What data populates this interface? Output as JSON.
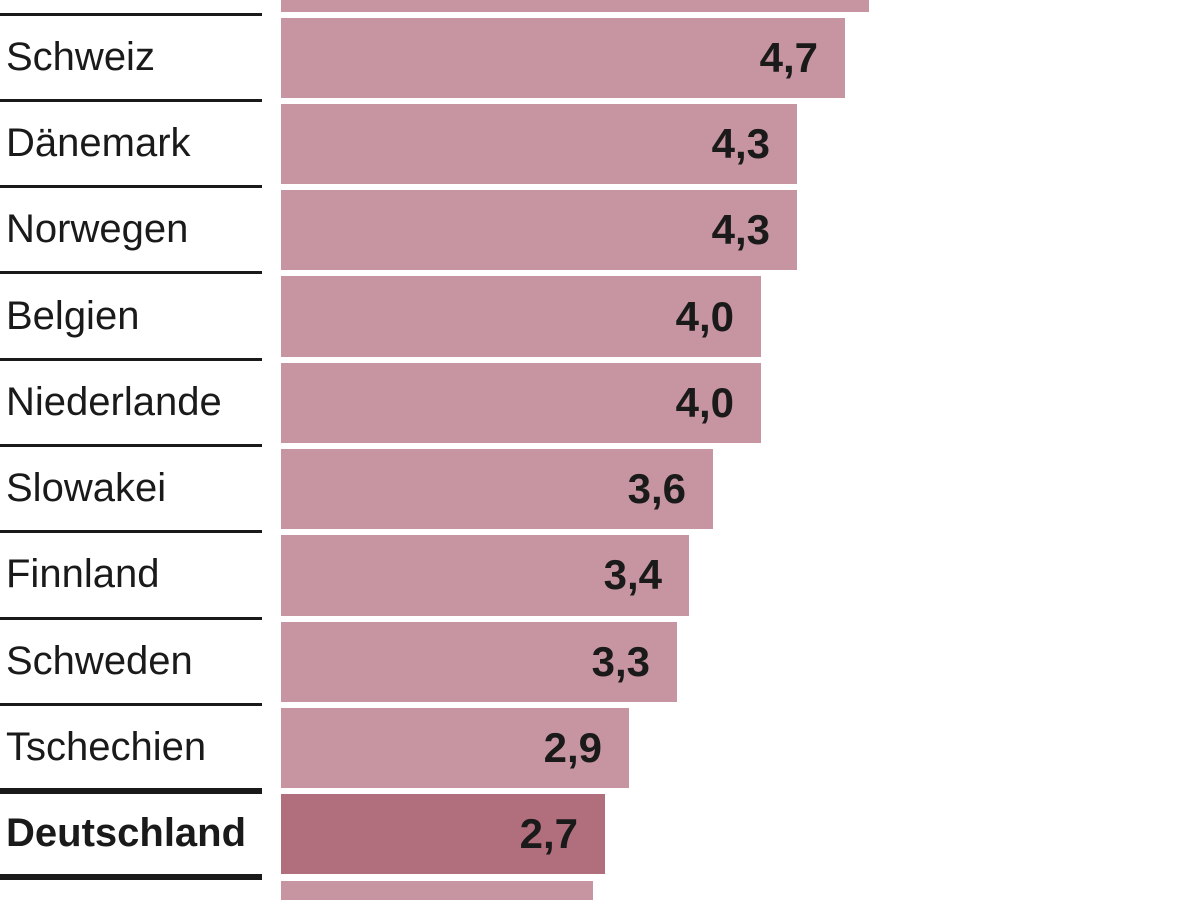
{
  "chart_data": {
    "type": "bar",
    "orientation": "horizontal",
    "title": "",
    "xlabel": "",
    "ylabel": "",
    "grid": false,
    "legend": false,
    "axes_visible": false,
    "value_labels_inside_bars": true,
    "categories": [
      "Schweiz",
      "Dänemark",
      "Norwegen",
      "Belgien",
      "Niederlande",
      "Slowakei",
      "Finnland",
      "Schweden",
      "Tschechien",
      "Deutschland"
    ],
    "values": [
      4.7,
      4.3,
      4.3,
      4.0,
      4.0,
      3.6,
      3.4,
      3.3,
      2.9,
      2.7
    ],
    "values_display": [
      "4,7",
      "4,3",
      "4,3",
      "4,0",
      "4,0",
      "3,6",
      "3,4",
      "3,3",
      "2,9",
      "2,7"
    ],
    "highlight_category": "Deutschland",
    "highlight_index": 9,
    "partial_bars": {
      "top": {
        "value_estimate": 4.9,
        "note": "bar cut off at top edge, no label visible"
      },
      "bottom": {
        "value_estimate": 2.6,
        "note": "bar cut off at bottom edge, no label visible"
      }
    },
    "xlim": [
      0,
      7.66
    ]
  },
  "colors": {
    "bar_light": "#c795a1",
    "bar_dark": "#b16e7d",
    "line": "#1a1a1a",
    "text": "#1a1a1a",
    "background": "#ffffff"
  }
}
